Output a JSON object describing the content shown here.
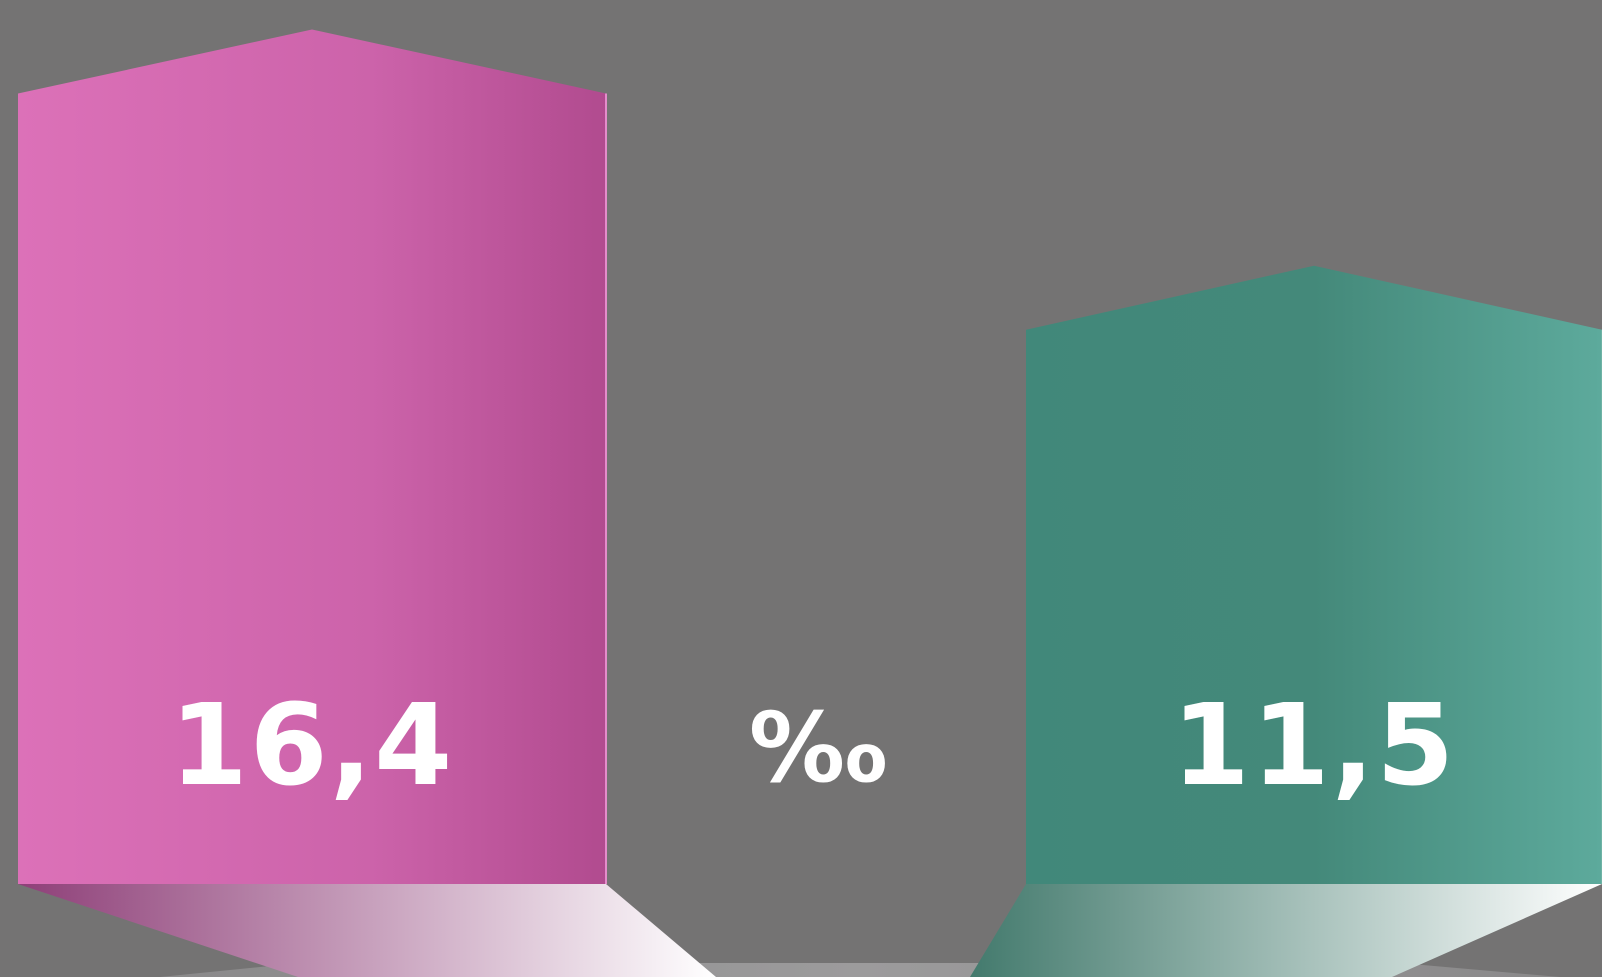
{
  "chart_data": {
    "type": "bar",
    "categories": [
      "",
      ""
    ],
    "values": [
      16.4,
      11.5
    ],
    "value_labels": [
      "16,4",
      "11,5"
    ],
    "unit": "‰",
    "colors": [
      "#d66ab4",
      "#44897a"
    ],
    "title": "",
    "xlabel": "",
    "ylabel": ""
  }
}
